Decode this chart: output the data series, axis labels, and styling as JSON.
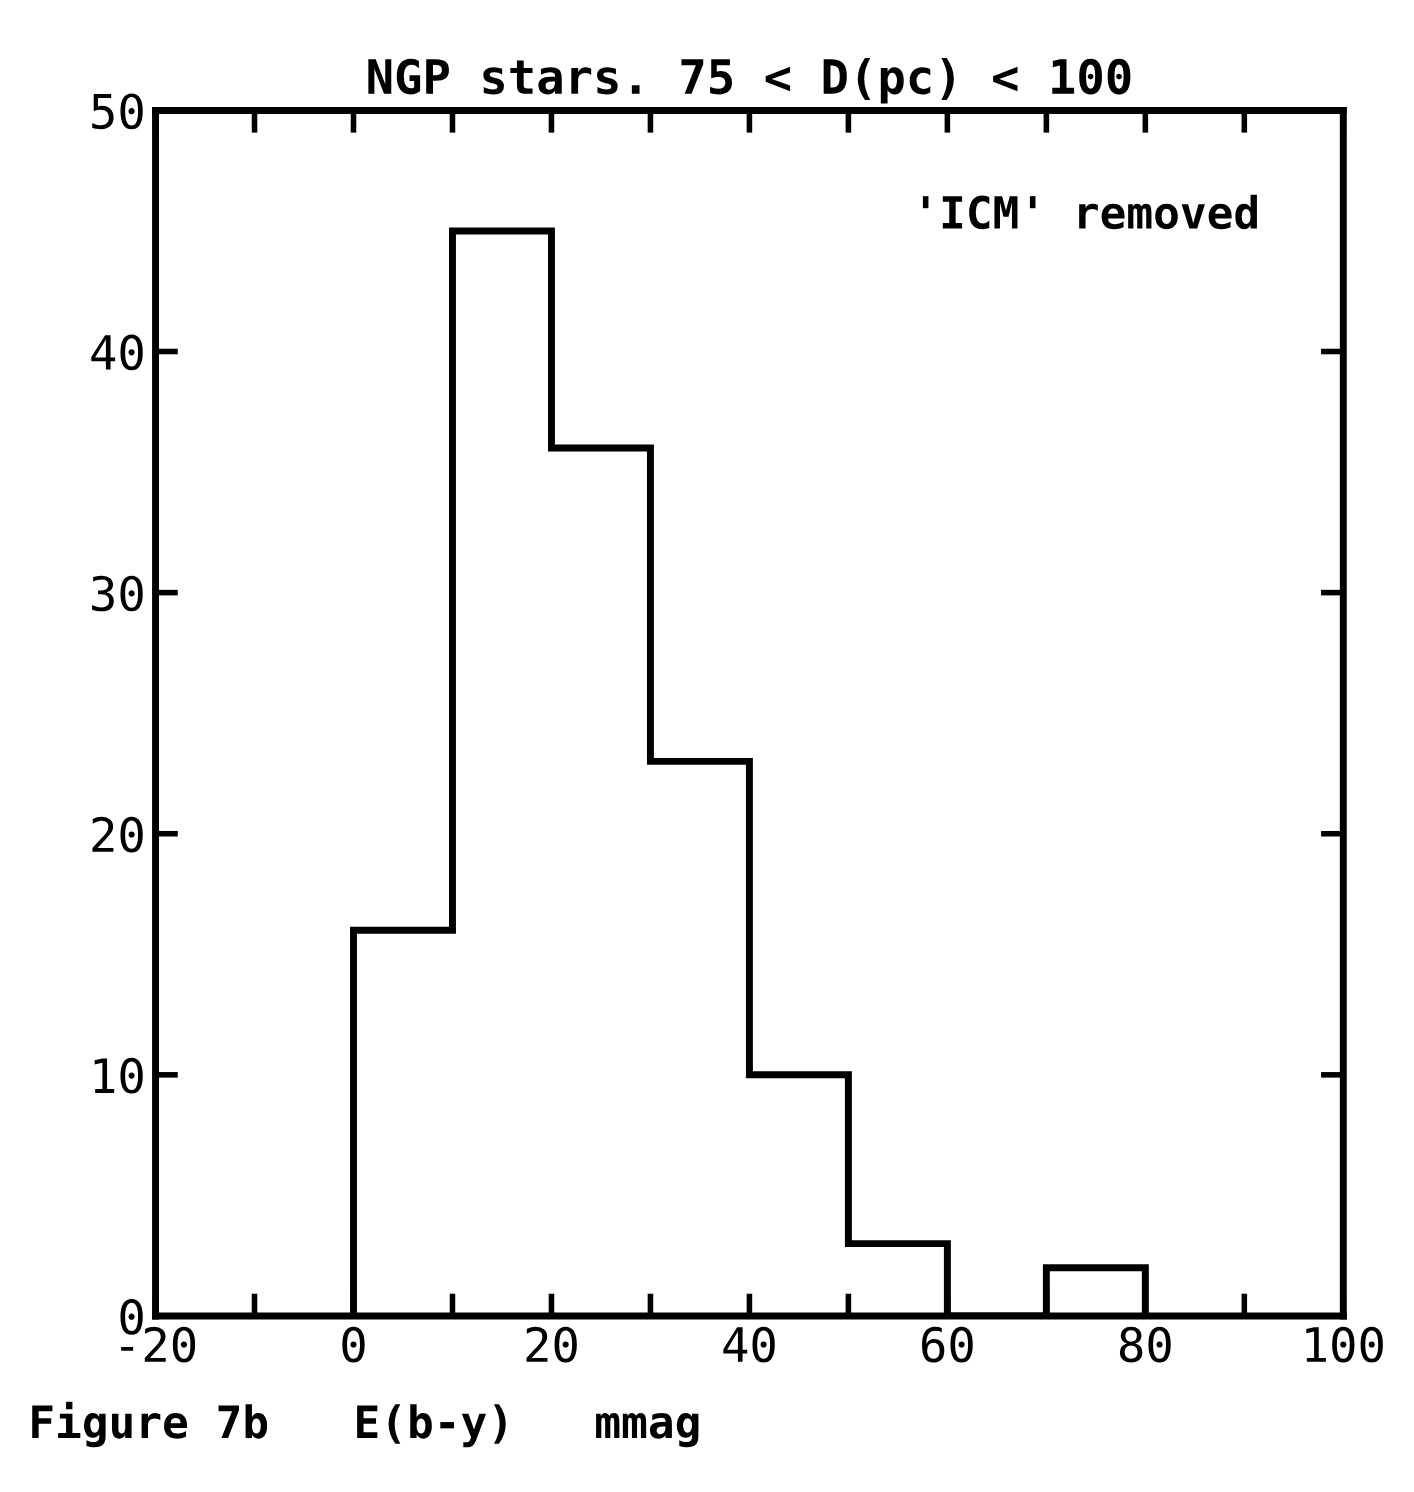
{
  "chart_data": {
    "type": "histogram",
    "title": "NGP stars. 75 < D(pc) < 100",
    "xlabel": "E(b-y)   mmag",
    "annotations": [
      "'ICM' removed",
      "Figure 7b"
    ],
    "bins": [
      0,
      10,
      20,
      30,
      40,
      50,
      60,
      70,
      80
    ],
    "values": [
      16,
      45,
      36,
      23,
      10,
      3,
      0,
      2
    ],
    "color": "#000000",
    "xlim": [
      -20,
      100
    ],
    "ylim": [
      0,
      50
    ],
    "xticks": [
      -20,
      {
        "value": -10,
        "label": null
      },
      0,
      {
        "value": 10,
        "label": null
      },
      20,
      {
        "value": 30,
        "label": null
      },
      40,
      {
        "value": 50,
        "label": null
      },
      60,
      {
        "value": 70,
        "label": null
      },
      80,
      {
        "value": 90,
        "label": null
      },
      100
    ],
    "yticks": [
      0,
      10,
      20,
      30,
      40,
      50
    ],
    "grid": false,
    "legend": false
  }
}
